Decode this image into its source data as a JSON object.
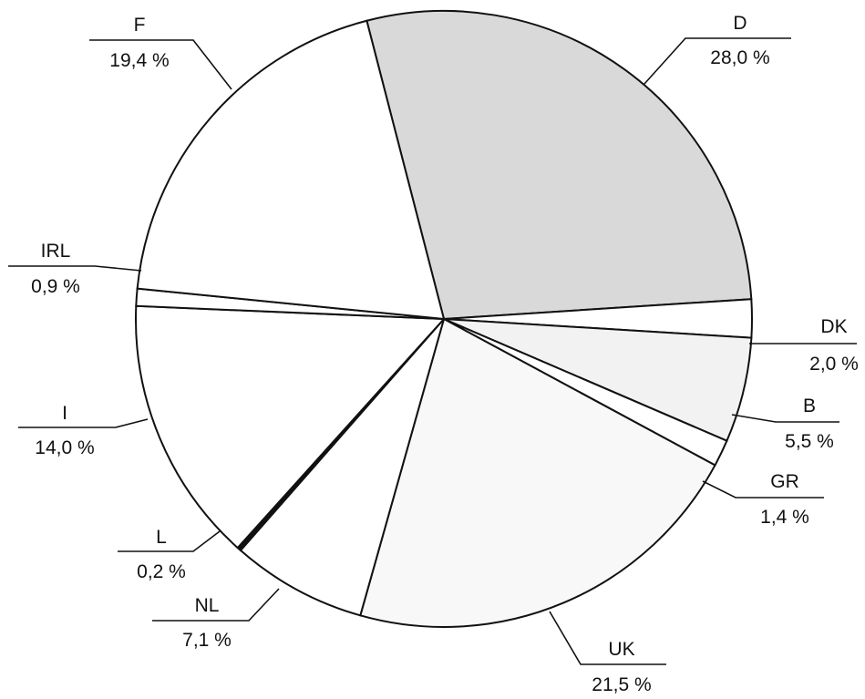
{
  "chart_data": {
    "type": "pie",
    "slices": [
      {
        "label": "D",
        "value_text": "28,0 %",
        "value": 28.0,
        "color": "#d9d9d9"
      },
      {
        "label": "DK",
        "value_text": "2,0 %",
        "value": 2.0,
        "color": "#ffffff"
      },
      {
        "label": "B",
        "value_text": "5,5 %",
        "value": 5.5,
        "color": "#f2f2f2"
      },
      {
        "label": "GR",
        "value_text": "1,4 %",
        "value": 1.4,
        "color": "#ffffff"
      },
      {
        "label": "UK",
        "value_text": "21,5 %",
        "value": 21.5,
        "color": "#f8f8f8"
      },
      {
        "label": "NL",
        "value_text": "7,1 %",
        "value": 7.1,
        "color": "#ffffff"
      },
      {
        "label": "L",
        "value_text": "0,2 %",
        "value": 0.2,
        "color": "#111111"
      },
      {
        "label": "I",
        "value_text": "14,0 %",
        "value": 14.0,
        "color": "#ffffff"
      },
      {
        "label": "IRL",
        "value_text": "0,9 %",
        "value": 0.9,
        "color": "#ffffff"
      },
      {
        "label": "F",
        "value_text": "19,4 %",
        "value": 19.4,
        "color": "#ffffff"
      }
    ]
  }
}
